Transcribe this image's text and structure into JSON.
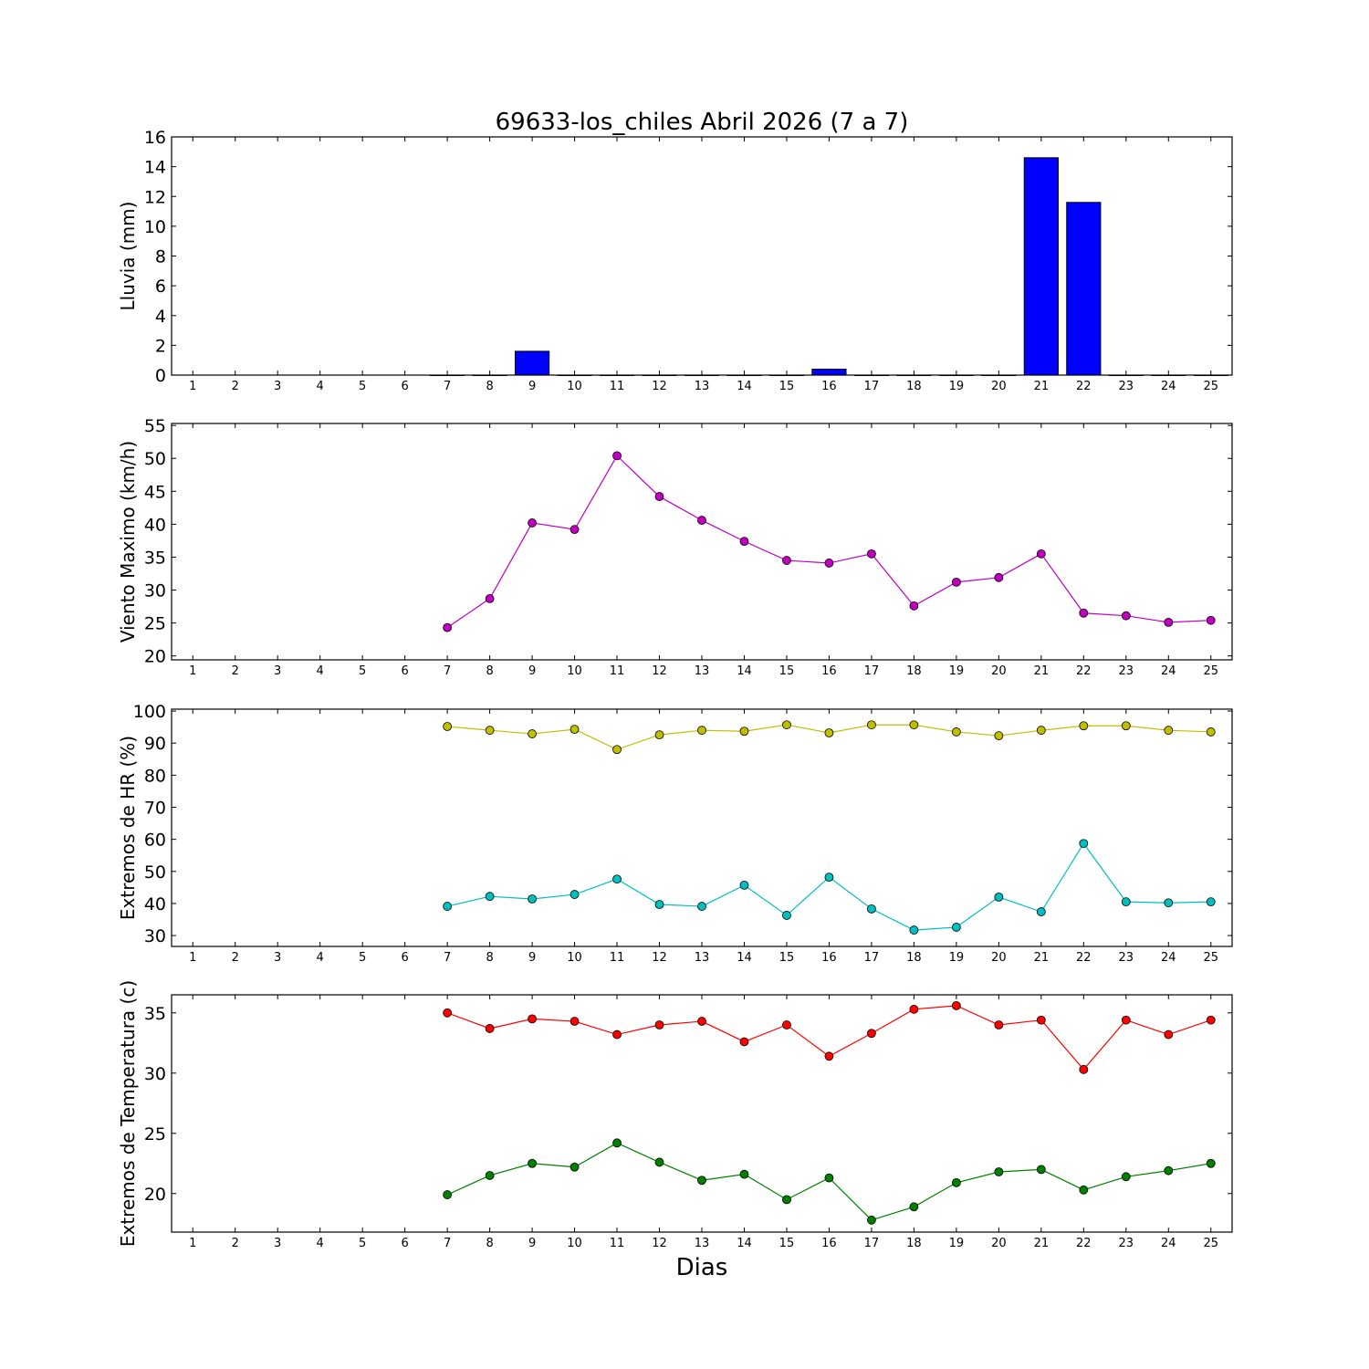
{
  "title": "69633-los_chiles Abril 2026  (7 a 7)",
  "xlabel": "Dias",
  "chart_data": [
    {
      "type": "bar",
      "ylabel": "Lluvia (mm)",
      "x": [
        1,
        2,
        3,
        4,
        5,
        6,
        7,
        8,
        9,
        10,
        11,
        12,
        13,
        14,
        15,
        16,
        17,
        18,
        19,
        20,
        21,
        22,
        23,
        24,
        25
      ],
      "ylim": [
        0,
        16
      ],
      "yticks": [
        0,
        2,
        4,
        6,
        8,
        10,
        12,
        14,
        16
      ],
      "series": [
        {
          "name": "Lluvia",
          "color": "#0000ff",
          "values": [
            null,
            null,
            null,
            null,
            null,
            null,
            0,
            0,
            1.6,
            0,
            0,
            0,
            0,
            0,
            0,
            0.4,
            0,
            0,
            0,
            0,
            14.6,
            11.6,
            0,
            0,
            0
          ]
        }
      ]
    },
    {
      "type": "line",
      "ylabel": "Viento Maximo (km/h)",
      "x": [
        1,
        2,
        3,
        4,
        5,
        6,
        7,
        8,
        9,
        10,
        11,
        12,
        13,
        14,
        15,
        16,
        17,
        18,
        19,
        20,
        21,
        22,
        23,
        24,
        25
      ],
      "ylim": [
        19.4,
        55.3
      ],
      "yticks": [
        20,
        25,
        30,
        35,
        40,
        45,
        50,
        55
      ],
      "series": [
        {
          "name": "Viento Maximo",
          "color": "#bf00bf",
          "values": [
            null,
            null,
            null,
            null,
            null,
            null,
            24.3,
            28.7,
            40.2,
            39.2,
            50.4,
            44.2,
            40.6,
            37.4,
            34.5,
            34.1,
            35.5,
            27.6,
            31.2,
            31.9,
            35.5,
            26.5,
            26.1,
            25.1,
            25.4
          ]
        }
      ]
    },
    {
      "type": "line",
      "ylabel": "Extremos de HR (%)",
      "x": [
        1,
        2,
        3,
        4,
        5,
        6,
        7,
        8,
        9,
        10,
        11,
        12,
        13,
        14,
        15,
        16,
        17,
        18,
        19,
        20,
        21,
        22,
        23,
        24,
        25
      ],
      "ylim": [
        26.6,
        100.6
      ],
      "yticks": [
        30,
        40,
        50,
        60,
        70,
        80,
        90,
        100
      ],
      "series": [
        {
          "name": "HR maxima",
          "color": "#bfbf00",
          "values": [
            null,
            null,
            null,
            null,
            null,
            null,
            95.2,
            94.0,
            92.9,
            94.3,
            88.0,
            92.6,
            94.0,
            93.7,
            95.7,
            93.2,
            95.7,
            95.7,
            93.5,
            92.3,
            94.0,
            95.4,
            95.4,
            94.0,
            93.5
          ]
        },
        {
          "name": "HR minima",
          "color": "#00bfbf",
          "values": [
            null,
            null,
            null,
            null,
            null,
            null,
            39.1,
            42.2,
            41.4,
            42.8,
            47.6,
            39.7,
            39.1,
            45.7,
            36.3,
            48.2,
            38.3,
            31.7,
            32.6,
            42.0,
            37.4,
            58.7,
            40.5,
            40.2,
            40.5
          ]
        }
      ]
    },
    {
      "type": "line",
      "ylabel": "Extremos de Temperatura (c)",
      "x": [
        1,
        2,
        3,
        4,
        5,
        6,
        7,
        8,
        9,
        10,
        11,
        12,
        13,
        14,
        15,
        16,
        17,
        18,
        19,
        20,
        21,
        22,
        23,
        24,
        25
      ],
      "ylim": [
        16.8,
        36.5
      ],
      "yticks": [
        20,
        25,
        30,
        35
      ],
      "series": [
        {
          "name": "Temperatura maxima",
          "color": "#ff0000",
          "values": [
            null,
            null,
            null,
            null,
            null,
            null,
            35.0,
            33.7,
            34.5,
            34.3,
            33.2,
            34.0,
            34.3,
            32.6,
            34.0,
            31.4,
            33.3,
            35.3,
            35.6,
            34.0,
            34.4,
            30.3,
            34.4,
            33.2,
            34.4
          ]
        },
        {
          "name": "Temperatura minima",
          "color": "#008000",
          "values": [
            null,
            null,
            null,
            null,
            null,
            null,
            19.9,
            21.5,
            22.5,
            22.2,
            24.2,
            22.6,
            21.1,
            21.6,
            19.5,
            21.3,
            17.8,
            18.9,
            20.9,
            21.8,
            22.0,
            20.3,
            21.4,
            21.9,
            22.5
          ]
        }
      ]
    }
  ]
}
